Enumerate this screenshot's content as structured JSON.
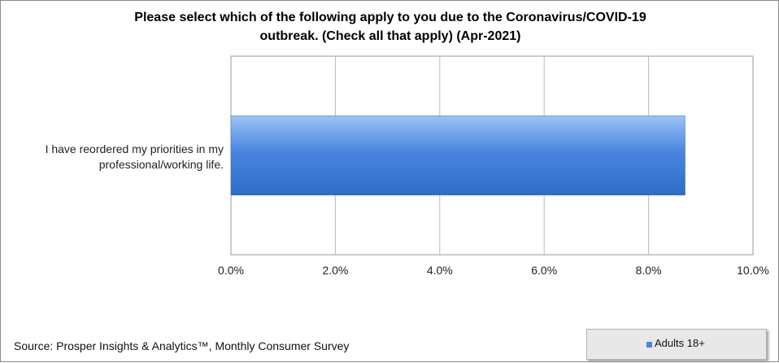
{
  "chart_data": {
    "type": "bar",
    "orientation": "horizontal",
    "title": "Please select which of the following apply to you due to the Coronavirus/COVID-19 outbreak. (Check all that apply) (Apr-2021)",
    "title_lines": [
      "Please select which of the following apply to you due to the Coronavirus/COVID-19",
      "outbreak. (Check all that apply) (Apr-2021)"
    ],
    "categories": [
      "I have reordered my priorities in my professional/working life."
    ],
    "category_label_lines": [
      "I have reordered my priorities in my",
      "professional/working life."
    ],
    "series": [
      {
        "name": "Adults 18+",
        "values": [
          8.7
        ],
        "color": "#4a86e0"
      }
    ],
    "xlim": [
      0,
      10
    ],
    "x_ticks": [
      0,
      2,
      4,
      6,
      8,
      10
    ],
    "x_tick_labels": [
      "0.0%",
      "2.0%",
      "4.0%",
      "6.0%",
      "8.0%",
      "10.0%"
    ],
    "grid": "vertical",
    "legend_position": "bottom-right"
  },
  "source": "Source: Prosper Insights & Analytics™, Monthly Consumer Survey",
  "legend": {
    "label": "Adults 18+"
  }
}
